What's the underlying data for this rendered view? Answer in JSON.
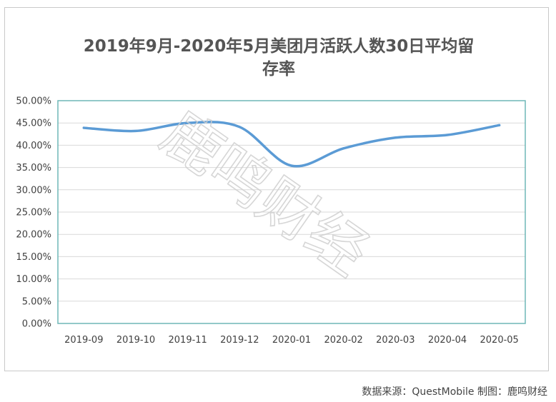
{
  "chart_data": {
    "type": "line",
    "title_line1": "2019年9月-2020年5月美团月活跃人数30日平均留",
    "title_line2": "存率",
    "categories": [
      "2019-09",
      "2019-10",
      "2019-11",
      "2019-12",
      "2020-01",
      "2020-02",
      "2020-03",
      "2020-04",
      "2020-05"
    ],
    "series": [
      {
        "values": [
          43.9,
          43.2,
          45.0,
          44.1,
          35.4,
          39.3,
          41.7,
          42.3,
          44.5
        ],
        "color": "#5b9bd5"
      }
    ],
    "ylim": [
      0,
      50
    ],
    "ytick_values": [
      0,
      5,
      10,
      15,
      20,
      25,
      30,
      35,
      40,
      45,
      50
    ],
    "ytick_labels": [
      "0.00%",
      "5.00%",
      "10.00%",
      "15.00%",
      "20.00%",
      "25.00%",
      "30.00%",
      "35.00%",
      "40.00%",
      "45.00%",
      "50.00%"
    ],
    "grid": true,
    "plot_border_color": "#6fb7b7",
    "grid_color": "#d9d9d9",
    "legend": "none"
  },
  "watermark": "鹿鸣财经",
  "source_note": "数据来源：QuestMobile  制图：鹿鸣财经"
}
